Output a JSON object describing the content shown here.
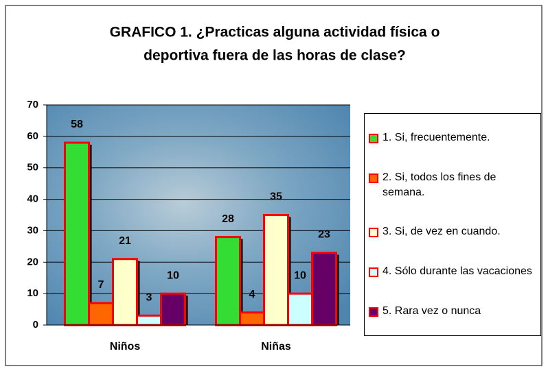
{
  "chart_data": {
    "type": "bar",
    "title": [
      "GRAFICO 1. ¿Practicas alguna actividad física o",
      "deportiva fuera de las horas de clase?"
    ],
    "categories": [
      "Niños",
      "Niñas"
    ],
    "series": [
      {
        "name": "1. Si, frecuentemente.",
        "color": "#33dd33",
        "values": [
          58,
          28
        ]
      },
      {
        "name": "2. Si, todos los fines de semana.",
        "color": "#ff6600",
        "values": [
          7,
          4
        ]
      },
      {
        "name": "3. Si, de vez en cuando.",
        "color": "#ffffcc",
        "values": [
          21,
          35
        ]
      },
      {
        "name": "4. Sólo durante las vacaciones",
        "color": "#ccffff",
        "values": [
          3,
          10
        ]
      },
      {
        "name": "5. Rara vez o nunca",
        "color": "#660066",
        "values": [
          10,
          23
        ]
      }
    ],
    "ylim": [
      0,
      70
    ],
    "yticks": [
      0,
      10,
      20,
      30,
      40,
      50,
      60,
      70
    ],
    "grid": true,
    "bar_border": "#ff0000"
  }
}
